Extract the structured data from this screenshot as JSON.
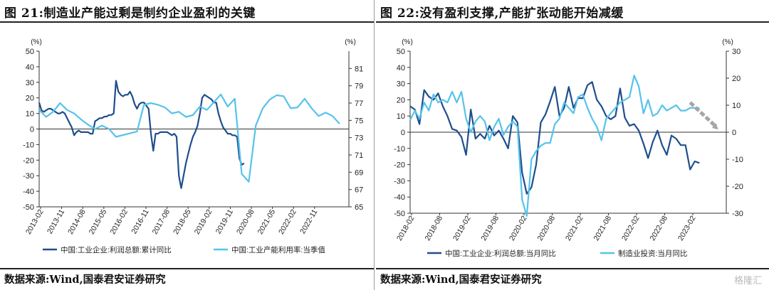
{
  "left": {
    "title": "图 21:制造业产能过剩是制约企业盈利的关键",
    "source": "数据来源:Wind,国泰君安证券研究",
    "chart_data": {
      "type": "line",
      "left_unit": "(%)",
      "right_unit": "(%)",
      "yleft_lim": [
        -50,
        50
      ],
      "yleft_ticks": [
        -50,
        -40,
        -30,
        -20,
        -10,
        0,
        10,
        20,
        30,
        40,
        50
      ],
      "yright_lim": [
        65,
        83
      ],
      "yright_ticks": [
        65,
        67,
        69,
        71,
        73,
        75,
        77,
        79,
        81
      ],
      "x_ticks": [
        "2013-02",
        "2013-11",
        "2014-08",
        "2015-05",
        "2016-02",
        "2016-11",
        "2017-08",
        "2018-05",
        "2019-02",
        "2019-11",
        "2020-08",
        "2021-05",
        "2022-02",
        "2022-11"
      ],
      "series": [
        {
          "name": "中国:工业企业:利润总额:累计同比",
          "color": "#1f4e8c",
          "axis": "left",
          "points": [
            [
              0,
              17
            ],
            [
              1,
              12
            ],
            [
              2,
              11
            ],
            [
              3,
              12
            ],
            [
              4,
              13
            ],
            [
              5,
              13
            ],
            [
              6,
              12
            ],
            [
              7,
              11
            ],
            [
              8,
              10
            ],
            [
              9,
              10
            ],
            [
              10,
              11
            ],
            [
              11,
              10
            ],
            [
              12,
              7
            ],
            [
              13,
              4
            ],
            [
              14,
              1
            ],
            [
              15,
              -4
            ],
            [
              16,
              -2
            ],
            [
              17,
              -1
            ],
            [
              18,
              -2
            ],
            [
              19,
              -2
            ],
            [
              20,
              -2
            ],
            [
              21,
              -2
            ],
            [
              22,
              -3
            ],
            [
              23,
              -3
            ],
            [
              24,
              5
            ],
            [
              25,
              6
            ],
            [
              26,
              7
            ],
            [
              27,
              7
            ],
            [
              28,
              8
            ],
            [
              29,
              8
            ],
            [
              30,
              9
            ],
            [
              31,
              9
            ],
            [
              32,
              10
            ],
            [
              33,
              31
            ],
            [
              34,
              24
            ],
            [
              35,
              22
            ],
            [
              36,
              21
            ],
            [
              37,
              22
            ],
            [
              38,
              22
            ],
            [
              39,
              24
            ],
            [
              40,
              21
            ],
            [
              41,
              16
            ],
            [
              42,
              13
            ],
            [
              43,
              16
            ],
            [
              44,
              17
            ],
            [
              45,
              17
            ],
            [
              46,
              15
            ],
            [
              47,
              13
            ],
            [
              48,
              -3
            ],
            [
              49,
              -14
            ],
            [
              50,
              -3
            ],
            [
              51,
              -3
            ],
            [
              52,
              -2
            ],
            [
              53,
              -2
            ],
            [
              54,
              -2
            ],
            [
              55,
              -2
            ],
            [
              56,
              -3
            ],
            [
              57,
              -4
            ],
            [
              58,
              -3
            ],
            [
              59,
              -5
            ],
            [
              60,
              -30
            ],
            [
              61,
              -38
            ],
            [
              62,
              -30
            ],
            [
              63,
              -22
            ],
            [
              64,
              -16
            ],
            [
              65,
              -10
            ],
            [
              66,
              -5
            ],
            [
              67,
              -2
            ],
            [
              68,
              2
            ],
            [
              69,
              10
            ],
            [
              70,
              20
            ],
            [
              71,
              22
            ],
            [
              72,
              21
            ],
            [
              73,
              20
            ],
            [
              74,
              19
            ],
            [
              75,
              17
            ],
            [
              76,
              17
            ],
            [
              77,
              10
            ],
            [
              78,
              5
            ],
            [
              79,
              1
            ],
            [
              80,
              -1
            ],
            [
              81,
              -3
            ],
            [
              82,
              -3
            ],
            [
              83,
              -4
            ],
            [
              84,
              -4
            ],
            [
              85,
              -5
            ],
            [
              86,
              -19
            ],
            [
              87,
              -23
            ],
            [
              88,
              -22
            ]
          ]
        },
        {
          "name": "中国:工业产能利用率:当季值",
          "color": "#55c3ea",
          "axis": "right",
          "points": [
            [
              0,
              76.2
            ],
            [
              3,
              75.4
            ],
            [
              6,
              76
            ],
            [
              9,
              77.0
            ],
            [
              12,
              76.2
            ],
            [
              15,
              75.8
            ],
            [
              18,
              75.1
            ],
            [
              21,
              74.5
            ],
            [
              24,
              74.0
            ],
            [
              27,
              74.4
            ],
            [
              30,
              74.0
            ],
            [
              33,
              73.1
            ],
            [
              36,
              73.3
            ],
            [
              39,
              73.5
            ],
            [
              42,
              73.7
            ],
            [
              45,
              76.8
            ],
            [
              48,
              77.0
            ],
            [
              51,
              76.8
            ],
            [
              54,
              76.5
            ],
            [
              57,
              75.8
            ],
            [
              60,
              76.0
            ],
            [
              63,
              75.4
            ],
            [
              66,
              75.6
            ],
            [
              69,
              76.6
            ],
            [
              72,
              76.2
            ],
            [
              75,
              77.1
            ],
            [
              78,
              78.0
            ],
            [
              81,
              76.6
            ],
            [
              84,
              77.5
            ],
            [
              87,
              68.8
            ],
            [
              90,
              67.9
            ],
            [
              93,
              74.4
            ],
            [
              96,
              76.4
            ],
            [
              99,
              77.4
            ],
            [
              102,
              77.9
            ],
            [
              105,
              77.8
            ],
            [
              108,
              76.4
            ],
            [
              111,
              76.5
            ],
            [
              114,
              77.5
            ],
            [
              117,
              76.4
            ],
            [
              120,
              75.5
            ],
            [
              123,
              75.9
            ],
            [
              126,
              75.5
            ],
            [
              129,
              74.6
            ]
          ]
        }
      ],
      "legend": [
        "中国:工业企业:利润总额:累计同比",
        "中国:工业产能利用率:当季值"
      ]
    }
  },
  "right": {
    "title": "图 22:没有盈利支撑,产能扩张动能开始减缓",
    "source": "数据来源:Wind,国泰君安证券研究",
    "watermark": "格隆汇",
    "chart_data": {
      "type": "line",
      "left_unit": "(%)",
      "right_unit": "(%)",
      "yleft_lim": [
        -50,
        50
      ],
      "yleft_ticks": [
        -50,
        -40,
        -30,
        -20,
        -10,
        0,
        10,
        20,
        30,
        40,
        50
      ],
      "yright_lim": [
        -30,
        30
      ],
      "yright_ticks": [
        -30,
        -20,
        -10,
        0,
        10,
        20,
        30
      ],
      "x_ticks": [
        "2018-02",
        "2018-08",
        "2019-02",
        "2019-08",
        "2020-02",
        "2020-08",
        "2021-02",
        "2021-08",
        "2022-02",
        "2022-08",
        "2023-02"
      ],
      "series": [
        {
          "name": "中国:工业企业:利润总额:当月同比",
          "color": "#1f4e8c",
          "axis": "left",
          "points": [
            [
              0,
              16
            ],
            [
              1,
              14
            ],
            [
              2,
              5
            ],
            [
              3,
              26
            ],
            [
              4,
              22
            ],
            [
              5,
              20
            ],
            [
              6,
              24
            ],
            [
              7,
              16
            ],
            [
              8,
              10
            ],
            [
              9,
              2
            ],
            [
              10,
              1
            ],
            [
              11,
              -3
            ],
            [
              12,
              -14
            ],
            [
              13,
              14
            ],
            [
              14,
              -4
            ],
            [
              15,
              -1
            ],
            [
              16,
              -4
            ],
            [
              17,
              4
            ],
            [
              18,
              -2
            ],
            [
              19,
              1
            ],
            [
              20,
              -4
            ],
            [
              21,
              -10
            ],
            [
              22,
              10
            ],
            [
              23,
              6
            ],
            [
              24,
              -25
            ],
            [
              25,
              -38
            ],
            [
              26,
              -34
            ],
            [
              27,
              -20
            ],
            [
              28,
              6
            ],
            [
              29,
              11
            ],
            [
              30,
              19
            ],
            [
              31,
              28
            ],
            [
              32,
              10
            ],
            [
              33,
              15
            ],
            [
              34,
              28
            ],
            [
              35,
              15
            ],
            [
              36,
              21
            ],
            [
              37,
              21
            ],
            [
              38,
              29
            ],
            [
              39,
              31
            ],
            [
              40,
              20
            ],
            [
              41,
              16
            ],
            [
              42,
              10
            ],
            [
              43,
              8
            ],
            [
              44,
              10
            ],
            [
              45,
              27
            ],
            [
              46,
              9
            ],
            [
              47,
              4
            ],
            [
              48,
              5
            ],
            [
              49,
              1
            ],
            [
              50,
              -7
            ],
            [
              51,
              -16
            ],
            [
              52,
              -6
            ],
            [
              53,
              1
            ],
            [
              54,
              -8
            ],
            [
              55,
              -14
            ],
            [
              56,
              -2
            ],
            [
              57,
              -4
            ],
            [
              58,
              -8
            ],
            [
              59,
              -8
            ],
            [
              60,
              -23
            ],
            [
              61,
              -18
            ],
            [
              62,
              -19
            ]
          ]
        },
        {
          "name": "制造业投资:当月同比",
          "color": "#55c3ea",
          "axis": "right",
          "points": [
            [
              0,
              4.5
            ],
            [
              1,
              8
            ],
            [
              2,
              5
            ],
            [
              3,
              11
            ],
            [
              4,
              8
            ],
            [
              5,
              14
            ],
            [
              6,
              11
            ],
            [
              7,
              12
            ],
            [
              8,
              11
            ],
            [
              9,
              15
            ],
            [
              10,
              11
            ],
            [
              11,
              15
            ],
            [
              12,
              5
            ],
            [
              13,
              0
            ],
            [
              14,
              4
            ],
            [
              15,
              6
            ],
            [
              16,
              4
            ],
            [
              17,
              -3
            ],
            [
              18,
              2
            ],
            [
              19,
              5
            ],
            [
              20,
              -1
            ],
            [
              21,
              2
            ],
            [
              22,
              4
            ],
            [
              23,
              2
            ],
            [
              24,
              -25
            ],
            [
              25,
              -31
            ],
            [
              26,
              -10
            ],
            [
              27,
              -7
            ],
            [
              28,
              -5
            ],
            [
              29,
              -4
            ],
            [
              30,
              -4
            ],
            [
              31,
              3
            ],
            [
              32,
              5
            ],
            [
              33,
              11
            ],
            [
              34,
              9
            ],
            [
              35,
              7
            ],
            [
              36,
              13
            ],
            [
              37,
              14
            ],
            [
              38,
              9
            ],
            [
              39,
              5
            ],
            [
              40,
              2
            ],
            [
              41,
              -3
            ],
            [
              42,
              5
            ],
            [
              43,
              7
            ],
            [
              44,
              9
            ],
            [
              45,
              11
            ],
            [
              46,
              12
            ],
            [
              47,
              13
            ],
            [
              48,
              21
            ],
            [
              49,
              17
            ],
            [
              50,
              7
            ],
            [
              51,
              12
            ],
            [
              52,
              6
            ],
            [
              53,
              7
            ],
            [
              54,
              10
            ],
            [
              55,
              8
            ],
            [
              56,
              9
            ],
            [
              57,
              10
            ],
            [
              58,
              8
            ],
            [
              59,
              8
            ],
            [
              60,
              9
            ],
            [
              61,
              9
            ],
            [
              62,
              9
            ]
          ]
        }
      ],
      "annotation": {
        "type": "trend-arrow",
        "from": [
          60,
          11
        ],
        "to": [
          66,
          1
        ],
        "color": "#a6a6a6"
      },
      "legend": [
        "中国:工业企业:利润总额:当月同比",
        "制造业投资:当月同比"
      ]
    }
  }
}
